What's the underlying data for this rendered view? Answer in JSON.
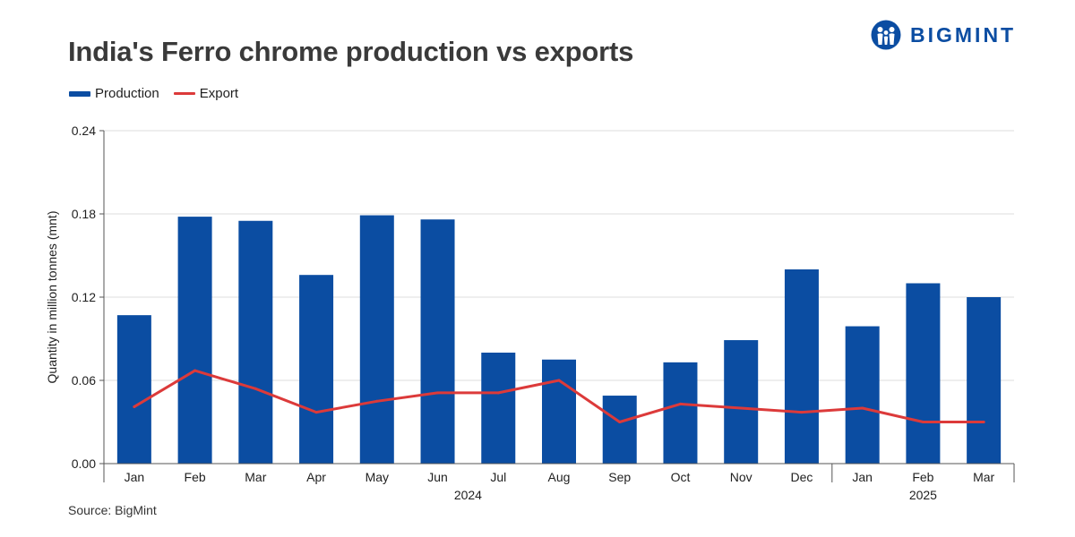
{
  "brand": {
    "name": "BIGMINT",
    "logo_icon": "bigmint-people-icon",
    "color": "#0b4da2"
  },
  "chart_data": {
    "type": "bar",
    "title": "India's Ferro chrome production vs exports",
    "ylabel": "Quantity in million tonnes (mnt)",
    "xlabel": "",
    "ylim": [
      0,
      0.24
    ],
    "yticks": [
      0,
      0.06,
      0.12,
      0.18,
      0.24
    ],
    "ytick_labels": [
      "0.00",
      "0.06",
      "0.12",
      "0.18",
      "0.24"
    ],
    "grid": true,
    "legend_position": "top-left",
    "categories": [
      "Jan",
      "Feb",
      "Mar",
      "Apr",
      "May",
      "Jun",
      "Jul",
      "Aug",
      "Sep",
      "Oct",
      "Nov",
      "Dec",
      "Jan",
      "Feb",
      "Mar"
    ],
    "year_groups": [
      {
        "label": "2024",
        "start": 0,
        "end": 11
      },
      {
        "label": "2025",
        "start": 12,
        "end": 14
      }
    ],
    "series": [
      {
        "name": "Production",
        "type": "bar",
        "color": "#0b4da2",
        "values": [
          0.107,
          0.178,
          0.175,
          0.136,
          0.179,
          0.176,
          0.08,
          0.075,
          0.049,
          0.073,
          0.089,
          0.14,
          0.099,
          0.13,
          0.12
        ]
      },
      {
        "name": "Export",
        "type": "line",
        "color": "#dc3a3a",
        "values": [
          0.041,
          0.067,
          0.054,
          0.037,
          0.045,
          0.051,
          0.051,
          0.06,
          0.03,
          0.043,
          0.04,
          0.037,
          0.04,
          0.03,
          0.03
        ]
      }
    ],
    "source": "Source: BigMint"
  }
}
